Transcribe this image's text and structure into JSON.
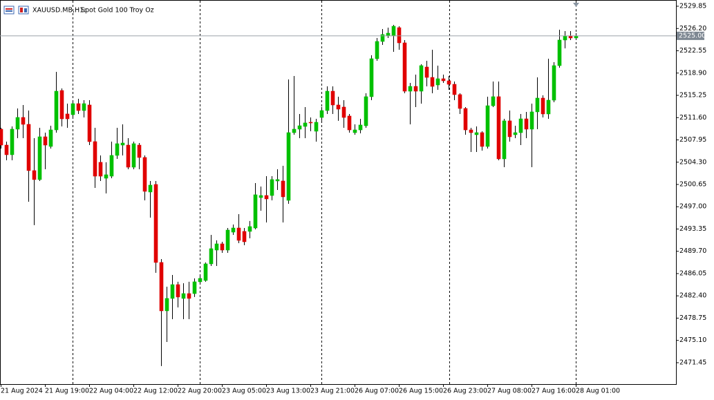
{
  "chart_data": {
    "type": "candlestick",
    "title": "XAUUSD.MB,H1:",
    "subtitle": "Spot Gold 100 Troy Oz",
    "bull_color": "#00c000",
    "bear_color": "#e00000",
    "wick_color": "#000000",
    "grid": false,
    "categories": [
      "21 Aug 2024",
      null,
      null,
      null,
      null,
      null,
      null,
      null,
      "21 Aug 19:00",
      null,
      null,
      null,
      null,
      null,
      null,
      null,
      "22 Aug 04:00",
      null,
      null,
      null,
      null,
      null,
      null,
      null,
      "22 Aug 12:00",
      null,
      null,
      null,
      null,
      null,
      null,
      null,
      "22 Aug 20:00",
      null,
      null,
      null,
      null,
      null,
      null,
      null,
      "23 Aug 05:00",
      null,
      null,
      null,
      null,
      null,
      null,
      null,
      "23 Aug 13:00",
      null,
      null,
      null,
      null,
      null,
      null,
      null,
      "23 Aug 21:00",
      null,
      null,
      null,
      null,
      null,
      null,
      null,
      "26 Aug 07:00",
      null,
      null,
      null,
      null,
      null,
      null,
      null,
      "26 Aug 15:00",
      null,
      null,
      null,
      null,
      null,
      null,
      null,
      "26 Aug 23:00",
      null,
      null,
      null,
      null,
      null,
      null,
      null,
      "27 Aug 08:00",
      null,
      null,
      null,
      null,
      null,
      null,
      null,
      "27 Aug 16:00",
      null,
      null,
      null,
      null,
      null,
      null,
      null,
      "28 Aug 01:00"
    ],
    "open": [
      2509.71,
      2507.1,
      2505.52,
      2509.71,
      2511.63,
      2510.5,
      2502.92,
      2501.45,
      2508.46,
      2506.88,
      2509.59,
      2516.04,
      2512.2,
      2512.08,
      2513.89,
      2512.76,
      2513.67,
      2507.67,
      2504.28,
      2501.67,
      2502.01,
      2505.41,
      2507.1,
      2507.1,
      2503.48,
      2507.1,
      2505.07,
      2499.41,
      2500.65,
      2487.87,
      2479.94,
      2481.98,
      2484.24,
      2481.98,
      2482.77,
      2482.77,
      2484.7,
      2484.92,
      2487.64,
      2489.9,
      2490.92,
      2489.9,
      2492.84,
      2493.52,
      2492.96,
      2492.96,
      2493.52,
      2498.5,
      2498.84,
      2498.84,
      2501.22,
      2501.22,
      2498.05,
      2509.14,
      2509.71,
      2510.16,
      2510.84,
      2509.37,
      2511.63,
      2512.76,
      2515.93,
      2513.67,
      2513.33,
      2511.86,
      2509.14,
      2509.59,
      2510.27,
      2515.03,
      2521.25,
      2524.08,
      2524.99,
      2524.99,
      2526.34,
      2523.85,
      2515.93,
      2516.72,
      2515.93,
      2519.89,
      2518.19,
      2516.95,
      2517.97,
      2517.63,
      2517.06,
      2515.37,
      2513.1,
      2509.59,
      2508.8,
      2509.14,
      2506.88,
      2513.55,
      2515.03,
      2504.84,
      2511.07,
      2508.8,
      2509.14,
      2511.4,
      2509.71,
      2512.54,
      2514.8,
      2512.2,
      2514.46,
      2520.12,
      2524.31,
      2524.99,
      2524.65
    ],
    "high": [
      2509.93,
      2507.67,
      2510.16,
      2513.1,
      2513.67,
      2512.76,
      2508.24,
      2509.93,
      2509.14,
      2510.27,
      2519.1,
      2516.38,
      2513.89,
      2514.46,
      2514.69,
      2514.46,
      2514.46,
      2509.93,
      2505.41,
      2504.28,
      2507.67,
      2509.93,
      2510.5,
      2508.24,
      2507.67,
      2507.44,
      2505.41,
      2501.22,
      2501.22,
      2488.43,
      2483.9,
      2485.83,
      2484.7,
      2484.47,
      2484.7,
      2485.26,
      2485.6,
      2487.87,
      2492.39,
      2491.49,
      2491.26,
      2493.52,
      2494.09,
      2495.79,
      2493.52,
      2494.66,
      2500.88,
      2500.31,
      2502.01,
      2502.01,
      2503.14,
      2503.71,
      2517.86,
      2518.42,
      2512.2,
      2513.33,
      2511.63,
      2511.4,
      2513.33,
      2516.72,
      2516.72,
      2515.03,
      2514.46,
      2512.2,
      2510.5,
      2511.4,
      2515.59,
      2521.82,
      2524.65,
      2526.12,
      2526.34,
      2526.8,
      2526.57,
      2524.31,
      2517.29,
      2518.65,
      2520.35,
      2520.91,
      2522.72,
      2520.12,
      2518.65,
      2518.42,
      2517.52,
      2515.59,
      2513.33,
      2509.93,
      2510.16,
      2509.37,
      2515.03,
      2517.52,
      2517.52,
      2511.4,
      2512.76,
      2510.27,
      2512.2,
      2512.54,
      2513.89,
      2518.19,
      2515.25,
      2521.25,
      2520.68,
      2526.0,
      2525.78,
      2525.78,
      2525.44
    ],
    "low": [
      2506.54,
      2504.61,
      2504.61,
      2508.24,
      2508.24,
      2497.82,
      2493.98,
      2501.22,
      2503.14,
      2506.54,
      2509.14,
      2510.16,
      2509.93,
      2511.4,
      2512.2,
      2511.63,
      2507.1,
      2500.09,
      2501.22,
      2499.18,
      2501.67,
      2504.84,
      2505.41,
      2503.14,
      2503.14,
      2503.14,
      2498.05,
      2495.22,
      2486.17,
      2470.89,
      2474.85,
      2478.58,
      2480.51,
      2478.58,
      2478.58,
      2482.21,
      2484.47,
      2484.7,
      2487.3,
      2487.3,
      2489.45,
      2489.45,
      2492.39,
      2491.03,
      2490.7,
      2491.83,
      2493.3,
      2496.35,
      2494.43,
      2498.05,
      2499.75,
      2494.43,
      2497.48,
      2508.8,
      2508.24,
      2508.24,
      2509.37,
      2507.67,
      2511.07,
      2512.2,
      2512.2,
      2511.07,
      2509.93,
      2509.14,
      2508.8,
      2509.03,
      2509.93,
      2514.46,
      2520.91,
      2523.51,
      2524.65,
      2522.38,
      2522.72,
      2515.59,
      2510.5,
      2513.33,
      2513.89,
      2516.72,
      2515.59,
      2516.16,
      2517.29,
      2516.16,
      2514.46,
      2512.2,
      2508.8,
      2505.97,
      2505.97,
      2506.2,
      2506.54,
      2513.33,
      2504.61,
      2503.48,
      2507.67,
      2508.24,
      2507.1,
      2508.24,
      2503.48,
      2509.71,
      2511.63,
      2511.4,
      2514.12,
      2519.78,
      2522.95,
      2524.31,
      2524.65
    ],
    "close": [
      2507.1,
      2505.52,
      2509.71,
      2511.63,
      2510.5,
      2502.92,
      2501.45,
      2508.46,
      2507.1,
      2509.59,
      2515.93,
      2511.4,
      2511.4,
      2513.89,
      2512.76,
      2513.89,
      2507.67,
      2502.01,
      2502.01,
      2502.24,
      2505.41,
      2507.33,
      2507.44,
      2503.48,
      2507.33,
      2505.07,
      2499.52,
      2500.54,
      2487.87,
      2479.94,
      2481.98,
      2484.24,
      2482.21,
      2482.77,
      2481.98,
      2484.7,
      2485.26,
      2487.64,
      2490.13,
      2490.92,
      2489.9,
      2493.18,
      2493.52,
      2491.49,
      2491.26,
      2493.75,
      2498.96,
      2498.84,
      2498.28,
      2501.45,
      2501.45,
      2498.62,
      2509.14,
      2509.71,
      2510.27,
      2510.73,
      2510.73,
      2510.84,
      2512.76,
      2515.93,
      2513.67,
      2512.99,
      2511.63,
      2509.59,
      2509.59,
      2510.39,
      2515.03,
      2521.25,
      2524.08,
      2525.21,
      2525.44,
      2526.57,
      2523.85,
      2515.93,
      2516.72,
      2515.93,
      2520.12,
      2518.19,
      2516.72,
      2517.97,
      2517.63,
      2517.06,
      2515.37,
      2513.1,
      2509.59,
      2509.14,
      2509.14,
      2506.88,
      2513.55,
      2515.03,
      2504.84,
      2511.07,
      2508.46,
      2509.14,
      2511.4,
      2509.71,
      2512.54,
      2514.8,
      2512.2,
      2514.46,
      2520.12,
      2524.31,
      2524.99,
      2524.65,
      2525.0
    ],
    "current_price": {
      "value": 2525.0,
      "label": "2525.00"
    },
    "ylim": [
      2467.94,
      2530.87
    ],
    "yticks": [
      {
        "value": 2529.85,
        "label": "2529.85"
      },
      {
        "value": 2526.2,
        "label": "2526.20"
      },
      {
        "value": 2522.55,
        "label": "2522.55"
      },
      {
        "value": 2518.9,
        "label": "2518.90"
      },
      {
        "value": 2515.25,
        "label": "2515.25"
      },
      {
        "value": 2511.6,
        "label": "2511.60"
      },
      {
        "value": 2507.95,
        "label": "2507.95"
      },
      {
        "value": 2504.3,
        "label": "2504.30"
      },
      {
        "value": 2500.65,
        "label": "2500.65"
      },
      {
        "value": 2497.0,
        "label": "2497.00"
      },
      {
        "value": 2493.35,
        "label": "2493.35"
      },
      {
        "value": 2489.7,
        "label": "2489.70"
      },
      {
        "value": 2486.05,
        "label": "2486.05"
      },
      {
        "value": 2482.4,
        "label": "2482.40"
      },
      {
        "value": 2478.75,
        "label": "2478.75"
      },
      {
        "value": 2475.1,
        "label": "2475.10"
      },
      {
        "value": 2471.45,
        "label": "2471.45"
      }
    ]
  }
}
